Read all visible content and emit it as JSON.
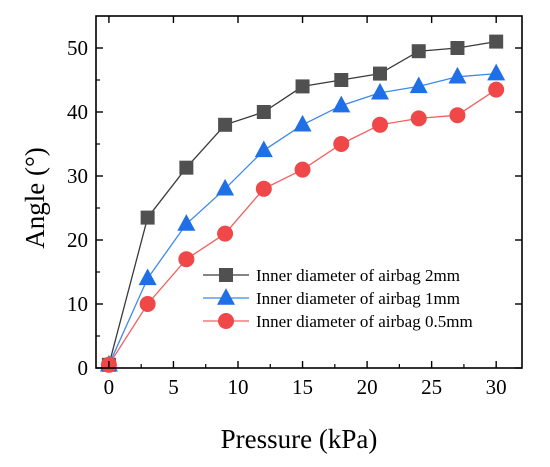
{
  "chart_data": {
    "type": "line",
    "title": "",
    "xlabel": "Pressure (kPa)",
    "ylabel": "Angle (°)",
    "xlim": [
      -1,
      32
    ],
    "ylim": [
      0,
      55
    ],
    "xticks": [
      0,
      5,
      10,
      15,
      20,
      25,
      30
    ],
    "yticks": [
      0,
      10,
      20,
      30,
      40,
      50
    ],
    "grid": false,
    "legend_position": "bottom-right",
    "series": [
      {
        "name": "Inner diameter of airbag 2mm",
        "marker": "square",
        "color": "#505050",
        "line_color": "#3a3a3a",
        "x": [
          0,
          3,
          6,
          9,
          12,
          15,
          18,
          21,
          24,
          27,
          30
        ],
        "y": [
          0.5,
          23.5,
          31.3,
          38,
          40,
          44,
          45,
          46,
          49.5,
          50,
          51
        ]
      },
      {
        "name": "Inner diameter of airbag 1mm",
        "marker": "triangle",
        "color": "#1f6fe6",
        "line_color": "#3d88e8",
        "x": [
          0,
          3,
          6,
          9,
          12,
          15,
          18,
          21,
          24,
          27,
          30
        ],
        "y": [
          0.5,
          14,
          22.5,
          28,
          34,
          38,
          41,
          43,
          44,
          45.5,
          46
        ]
      },
      {
        "name": "Inner diameter of airbag 0.5mm",
        "marker": "circle",
        "color": "#f04848",
        "line_color": "#f06060",
        "x": [
          0,
          3,
          6,
          9,
          12,
          15,
          18,
          21,
          24,
          27,
          30
        ],
        "y": [
          0.5,
          10,
          17,
          21,
          28,
          31,
          35,
          38,
          39,
          39.5,
          43.5
        ]
      }
    ]
  }
}
